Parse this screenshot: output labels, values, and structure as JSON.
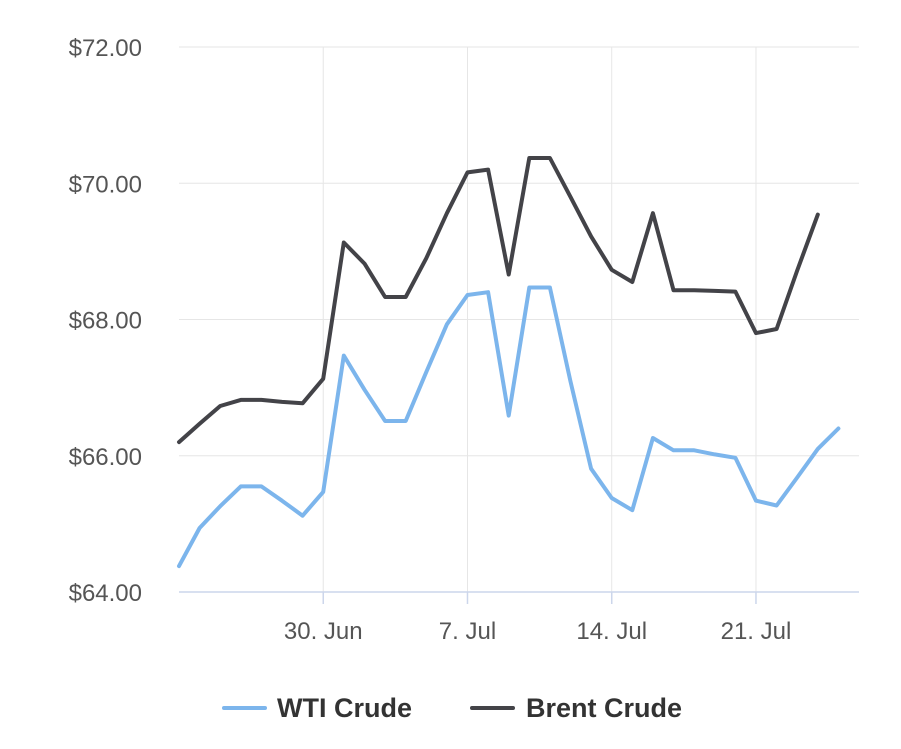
{
  "chart_data": {
    "type": "line",
    "title": "",
    "xlabel": "",
    "ylabel": "",
    "x_ticks": [
      {
        "date": "2023-06-30",
        "label": "30. Jun"
      },
      {
        "date": "2023-07-07",
        "label": "7. Jul"
      },
      {
        "date": "2023-07-14",
        "label": "14. Jul"
      },
      {
        "date": "2023-07-21",
        "label": "21. Jul"
      }
    ],
    "xlim": [
      "2023-06-23",
      "2023-07-26"
    ],
    "y_ticks": [
      {
        "value": 64,
        "label": "$64.00"
      },
      {
        "value": 66,
        "label": "$66.00"
      },
      {
        "value": 68,
        "label": "$68.00"
      },
      {
        "value": 70,
        "label": "$70.00"
      },
      {
        "value": 72,
        "label": "$72.00"
      }
    ],
    "ylim": [
      64,
      72
    ],
    "grid": true,
    "legend_position": "bottom",
    "series": [
      {
        "name": "WTI Crude",
        "color": "#7cb5ec",
        "points": [
          [
            "2023-06-23",
            64.38
          ],
          [
            "2023-06-24",
            64.94
          ],
          [
            "2023-06-25",
            65.26
          ],
          [
            "2023-06-26",
            65.55
          ],
          [
            "2023-06-27",
            65.55
          ],
          [
            "2023-06-28",
            65.34
          ],
          [
            "2023-06-29",
            65.12
          ],
          [
            "2023-06-30",
            65.47
          ],
          [
            "2023-07-01",
            67.47
          ],
          [
            "2023-07-02",
            66.97
          ],
          [
            "2023-07-03",
            66.51
          ],
          [
            "2023-07-04",
            66.51
          ],
          [
            "2023-07-05",
            67.23
          ],
          [
            "2023-07-06",
            67.93
          ],
          [
            "2023-07-07",
            68.36
          ],
          [
            "2023-07-08",
            68.4
          ],
          [
            "2023-07-09",
            66.59
          ],
          [
            "2023-07-10",
            68.47
          ],
          [
            "2023-07-11",
            68.47
          ],
          [
            "2023-07-12",
            67.09
          ],
          [
            "2023-07-13",
            65.81
          ],
          [
            "2023-07-14",
            65.38
          ],
          [
            "2023-07-15",
            65.2
          ],
          [
            "2023-07-16",
            66.26
          ],
          [
            "2023-07-17",
            66.08
          ],
          [
            "2023-07-18",
            66.08
          ],
          [
            "2023-07-19",
            66.02
          ],
          [
            "2023-07-20",
            65.97
          ],
          [
            "2023-07-21",
            65.34
          ],
          [
            "2023-07-22",
            65.27
          ],
          [
            "2023-07-23",
            65.68
          ],
          [
            "2023-07-24",
            66.1
          ],
          [
            "2023-07-25",
            66.4
          ]
        ]
      },
      {
        "name": "Brent Crude",
        "color": "#434348",
        "points": [
          [
            "2023-06-23",
            66.2
          ],
          [
            "2023-06-24",
            66.47
          ],
          [
            "2023-06-25",
            66.73
          ],
          [
            "2023-06-26",
            66.82
          ],
          [
            "2023-06-27",
            66.82
          ],
          [
            "2023-06-28",
            66.79
          ],
          [
            "2023-06-29",
            66.77
          ],
          [
            "2023-06-30",
            67.13
          ],
          [
            "2023-07-01",
            69.13
          ],
          [
            "2023-07-02",
            68.82
          ],
          [
            "2023-07-03",
            68.33
          ],
          [
            "2023-07-04",
            68.33
          ],
          [
            "2023-07-05",
            68.9
          ],
          [
            "2023-07-06",
            69.56
          ],
          [
            "2023-07-07",
            70.16
          ],
          [
            "2023-07-08",
            70.2
          ],
          [
            "2023-07-09",
            68.66
          ],
          [
            "2023-07-10",
            70.37
          ],
          [
            "2023-07-11",
            70.37
          ],
          [
            "2023-07-12",
            69.8
          ],
          [
            "2023-07-13",
            69.22
          ],
          [
            "2023-07-14",
            68.73
          ],
          [
            "2023-07-15",
            68.55
          ],
          [
            "2023-07-16",
            69.56
          ],
          [
            "2023-07-17",
            68.43
          ],
          [
            "2023-07-18",
            68.43
          ],
          [
            "2023-07-19",
            68.42
          ],
          [
            "2023-07-20",
            68.41
          ],
          [
            "2023-07-21",
            67.8
          ],
          [
            "2023-07-22",
            67.86
          ],
          [
            "2023-07-23",
            68.72
          ],
          [
            "2023-07-24",
            69.54
          ]
        ]
      }
    ]
  }
}
